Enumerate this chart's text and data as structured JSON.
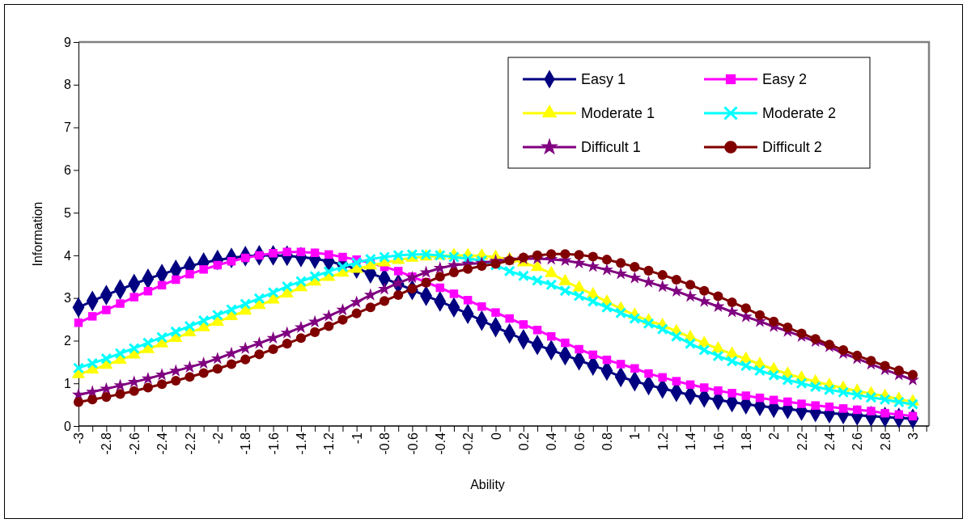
{
  "chart_data": {
    "type": "line",
    "xlabel": "Ability",
    "ylabel": "Information",
    "categories": [
      "-3",
      null,
      "-2.8",
      null,
      "-2.6",
      null,
      "-2.4",
      null,
      "-2.2",
      null,
      "-2",
      null,
      "-1.8",
      null,
      "-1.6",
      null,
      "-1.4",
      null,
      "-1.2",
      null,
      "-1",
      null,
      "-0.8",
      null,
      "-0.6",
      null,
      "-0.4",
      null,
      "-0.2",
      null,
      "0",
      null,
      "0.2",
      null,
      "0.4",
      null,
      "0.6",
      null,
      "0.8",
      null,
      "1",
      null,
      "1.2",
      null,
      "1.4",
      null,
      "1.6",
      null,
      "1.8",
      null,
      "2",
      null,
      "2.2",
      null,
      "2.4",
      null,
      "2.6",
      null,
      "2.8",
      null,
      "3"
    ],
    "ylim": [
      0,
      9
    ],
    "yticks": [
      0,
      1,
      2,
      3,
      4,
      5,
      6,
      7,
      8,
      9
    ],
    "grid": false,
    "legend": "top right",
    "line_style": "solid",
    "series": [
      {
        "name": "Easy 1",
        "color": "#000080",
        "marker": "diamond",
        "values": [
          2.78,
          2.93,
          3.07,
          3.2,
          3.33,
          3.45,
          3.56,
          3.66,
          3.75,
          3.83,
          3.89,
          3.94,
          3.98,
          4.0,
          4.0,
          3.99,
          3.96,
          3.92,
          3.86,
          3.78,
          3.69,
          3.58,
          3.46,
          3.33,
          3.19,
          3.05,
          2.92,
          2.78,
          2.63,
          2.47,
          2.32,
          2.17,
          2.03,
          1.9,
          1.78,
          1.66,
          1.54,
          1.42,
          1.3,
          1.15,
          1.05,
          0.96,
          0.88,
          0.8,
          0.73,
          0.67,
          0.61,
          0.56,
          0.51,
          0.47,
          0.43,
          0.4,
          0.36,
          0.33,
          0.3,
          0.28,
          0.25,
          0.23,
          0.21,
          0.19,
          0.17
        ]
      },
      {
        "name": "Easy 2",
        "color": "#ff00ff",
        "marker": "square",
        "values": [
          2.42,
          2.57,
          2.72,
          2.87,
          3.02,
          3.16,
          3.3,
          3.43,
          3.56,
          3.67,
          3.77,
          3.86,
          3.94,
          4.0,
          4.05,
          4.08,
          4.08,
          4.06,
          4.02,
          3.96,
          3.9,
          3.82,
          3.73,
          3.63,
          3.5,
          3.37,
          3.24,
          3.1,
          2.95,
          2.8,
          2.66,
          2.52,
          2.38,
          2.25,
          2.1,
          1.95,
          1.8,
          1.67,
          1.55,
          1.45,
          1.35,
          1.23,
          1.14,
          1.05,
          0.97,
          0.9,
          0.83,
          0.77,
          0.71,
          0.66,
          0.61,
          0.57,
          0.52,
          0.48,
          0.45,
          0.41,
          0.38,
          0.35,
          0.3,
          0.27,
          0.23
        ]
      },
      {
        "name": "Moderate 1",
        "color": "#ffff00",
        "marker": "triangle",
        "values": [
          1.21,
          1.32,
          1.43,
          1.55,
          1.67,
          1.8,
          1.93,
          2.06,
          2.19,
          2.31,
          2.44,
          2.57,
          2.7,
          2.83,
          2.96,
          3.1,
          3.25,
          3.38,
          3.49,
          3.59,
          3.68,
          3.76,
          3.83,
          3.89,
          3.94,
          3.97,
          3.99,
          4.0,
          4.0,
          3.99,
          3.96,
          3.91,
          3.83,
          3.72,
          3.58,
          3.39,
          3.24,
          3.08,
          2.91,
          2.75,
          2.6,
          2.47,
          2.36,
          2.22,
          2.08,
          1.94,
          1.81,
          1.69,
          1.57,
          1.45,
          1.33,
          1.22,
          1.13,
          1.04,
          0.96,
          0.89,
          0.82,
          0.76,
          0.7,
          0.63,
          0.57
        ]
      },
      {
        "name": "Moderate  2",
        "color": "#00ffff",
        "marker": "cross",
        "values": [
          1.36,
          1.47,
          1.58,
          1.7,
          1.82,
          1.95,
          2.08,
          2.21,
          2.34,
          2.47,
          2.6,
          2.73,
          2.86,
          2.99,
          3.13,
          3.27,
          3.39,
          3.51,
          3.62,
          3.73,
          3.83,
          3.91,
          3.96,
          4.0,
          4.02,
          4.02,
          4.0,
          3.96,
          3.92,
          3.88,
          3.77,
          3.63,
          3.52,
          3.41,
          3.31,
          3.17,
          3.05,
          2.92,
          2.78,
          2.65,
          2.52,
          2.4,
          2.27,
          2.1,
          1.93,
          1.78,
          1.64,
          1.52,
          1.41,
          1.3,
          1.19,
          1.08,
          1.0,
          0.92,
          0.85,
          0.79,
          0.73,
          0.67,
          0.62,
          0.56,
          0.51
        ]
      },
      {
        "name": "Difficult  1",
        "color": "#800080",
        "marker": "star",
        "values": [
          0.73,
          0.8,
          0.87,
          0.95,
          1.03,
          1.11,
          1.2,
          1.29,
          1.38,
          1.47,
          1.58,
          1.7,
          1.82,
          1.94,
          2.06,
          2.18,
          2.31,
          2.44,
          2.58,
          2.72,
          2.9,
          3.07,
          3.21,
          3.35,
          3.48,
          3.6,
          3.7,
          3.77,
          3.8,
          3.82,
          3.87,
          3.9,
          3.92,
          3.92,
          3.91,
          3.88,
          3.82,
          3.74,
          3.66,
          3.57,
          3.47,
          3.37,
          3.27,
          3.16,
          3.04,
          2.92,
          2.8,
          2.68,
          2.56,
          2.45,
          2.33,
          2.22,
          2.1,
          1.98,
          1.86,
          1.7,
          1.58,
          1.45,
          1.32,
          1.2,
          1.08
        ]
      },
      {
        "name": "Difficult 2",
        "color": "#800000",
        "marker": "circle",
        "values": [
          0.56,
          0.62,
          0.68,
          0.75,
          0.82,
          0.9,
          0.98,
          1.06,
          1.15,
          1.24,
          1.34,
          1.45,
          1.56,
          1.68,
          1.8,
          1.93,
          2.06,
          2.2,
          2.34,
          2.49,
          2.64,
          2.78,
          2.93,
          3.07,
          3.22,
          3.36,
          3.5,
          3.6,
          3.68,
          3.75,
          3.8,
          3.88,
          3.95,
          4.0,
          4.03,
          4.03,
          4.01,
          3.97,
          3.9,
          3.82,
          3.73,
          3.64,
          3.54,
          3.43,
          3.31,
          3.17,
          3.04,
          2.9,
          2.76,
          2.6,
          2.45,
          2.31,
          2.17,
          2.04,
          1.91,
          1.78,
          1.65,
          1.53,
          1.41,
          1.3,
          1.2
        ]
      }
    ]
  }
}
